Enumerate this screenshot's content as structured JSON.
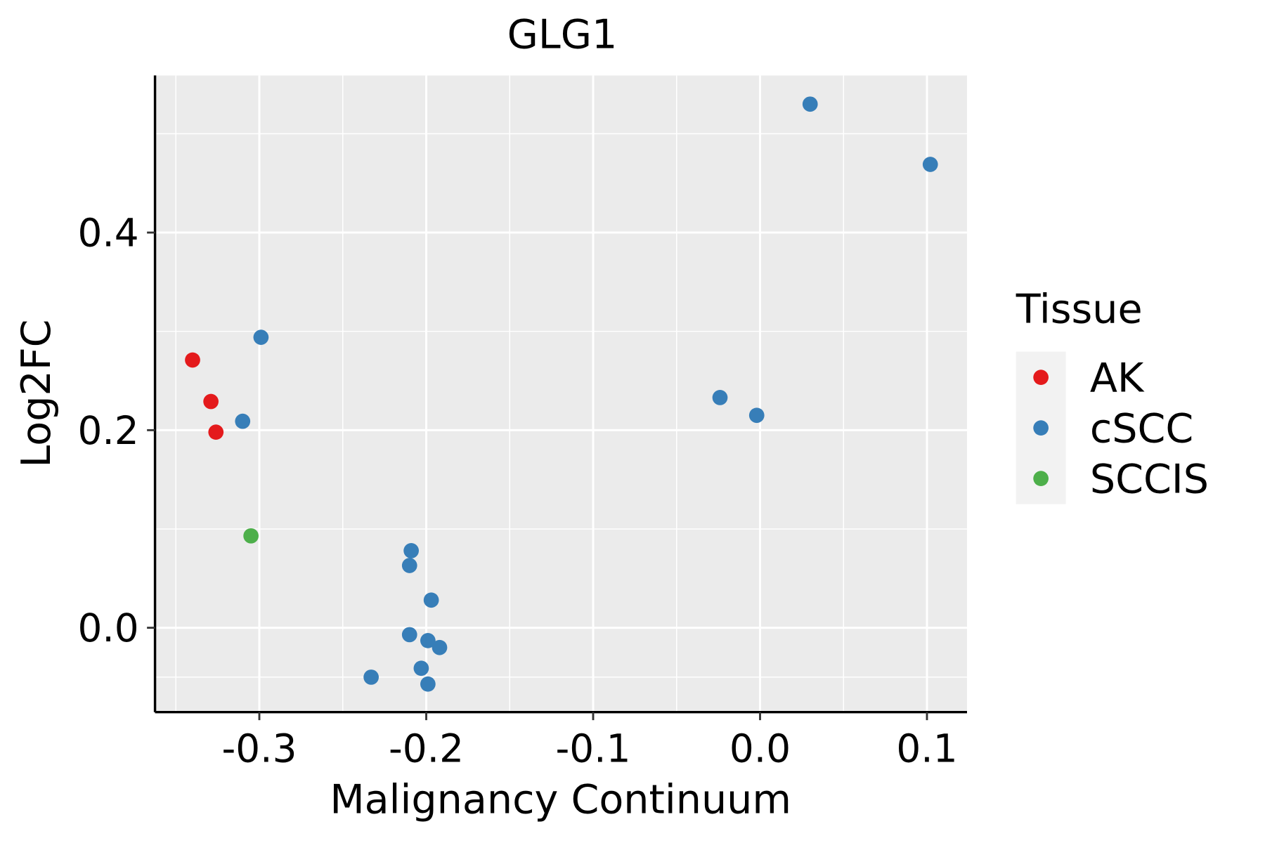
{
  "chart_data": {
    "type": "scatter",
    "title": "GLG1",
    "xlabel": "Malignancy Continuum",
    "ylabel": "Log2FC",
    "xlim": [
      -0.3625,
      0.124
    ],
    "ylim": [
      -0.0854,
      0.559
    ],
    "xticks": [
      -0.3,
      -0.2,
      -0.1,
      0.0,
      0.1
    ],
    "xtick_labels": [
      "-0.3",
      "-0.2",
      "-0.1",
      "0.0",
      "0.1"
    ],
    "yticks": [
      0.0,
      0.2,
      0.4
    ],
    "ytick_labels": [
      "0.0",
      "0.2",
      "0.4"
    ],
    "grid": true,
    "legend": {
      "title": "Tissue",
      "placement": "right"
    },
    "series": [
      {
        "name": "AK",
        "color": "#E41A1C",
        "points": [
          [
            -0.34,
            0.271
          ],
          [
            -0.329,
            0.229
          ],
          [
            -0.326,
            0.198
          ]
        ]
      },
      {
        "name": "cSCC",
        "color": "#377EB8",
        "points": [
          [
            0.03,
            0.53
          ],
          [
            0.102,
            0.469
          ],
          [
            -0.299,
            0.294
          ],
          [
            -0.31,
            0.209
          ],
          [
            -0.024,
            0.233
          ],
          [
            -0.002,
            0.215
          ],
          [
            -0.209,
            0.078
          ],
          [
            -0.21,
            0.063
          ],
          [
            -0.197,
            0.028
          ],
          [
            -0.21,
            -0.007
          ],
          [
            -0.199,
            -0.013
          ],
          [
            -0.192,
            -0.02
          ],
          [
            -0.203,
            -0.041
          ],
          [
            -0.199,
            -0.057
          ],
          [
            -0.233,
            -0.05
          ]
        ]
      },
      {
        "name": "SCCIS",
        "color": "#4DAF4A",
        "points": [
          [
            -0.305,
            0.093
          ]
        ]
      }
    ]
  }
}
